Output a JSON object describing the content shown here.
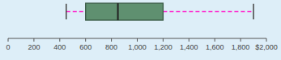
{
  "chart_data": {
    "type": "box",
    "orientation": "horizontal",
    "whisker_low": 450,
    "q1": 600,
    "median": 850,
    "q3": 1200,
    "whisker_high": 1900,
    "color": "#5f9070",
    "xlim": [
      0,
      2000
    ],
    "xticks": [
      0,
      200,
      400,
      600,
      800,
      {
        "value": 1000,
        "label": "1,000"
      },
      {
        "value": 1200,
        "label": "1,200"
      },
      {
        "value": 1400,
        "label": "1,400"
      },
      {
        "value": 1600,
        "label": "1,600"
      },
      {
        "value": 1800,
        "label": "1,800"
      },
      {
        "value": 2000,
        "label": "$2,000"
      }
    ],
    "grid": false
  }
}
